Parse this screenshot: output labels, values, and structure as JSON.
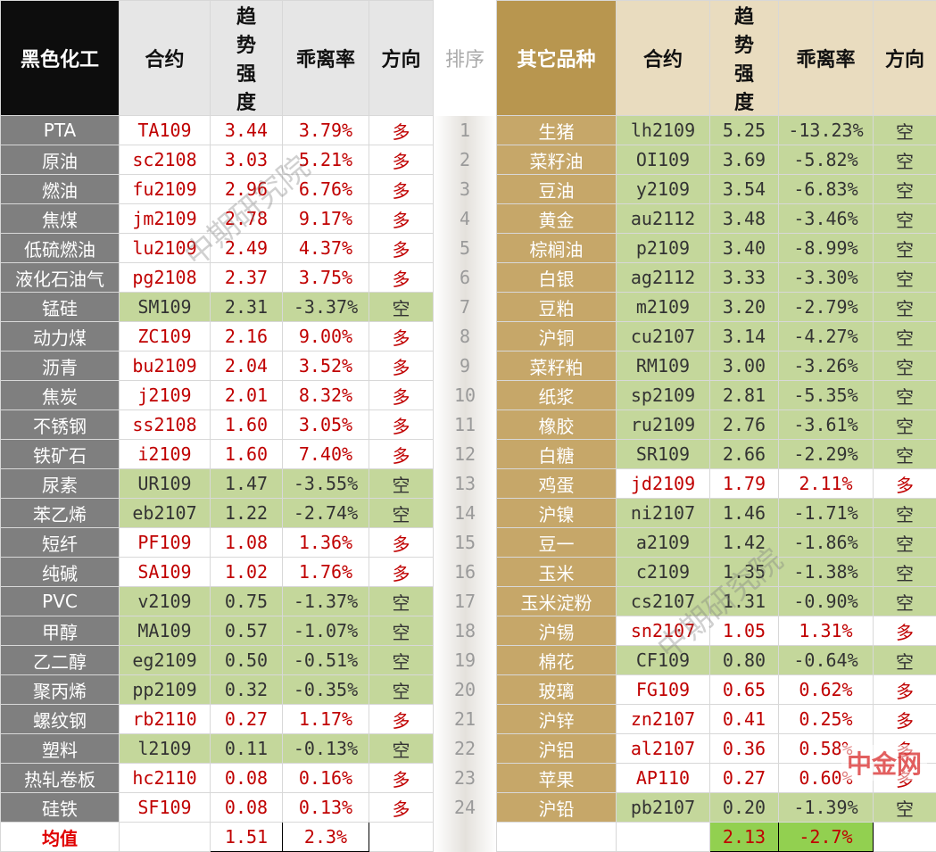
{
  "left": {
    "header": [
      "黑色化工",
      "合约",
      "趋势强度",
      "乖离率",
      "方向"
    ],
    "rows": [
      {
        "cells": [
          "PTA",
          "TA109",
          "3.44",
          "3.79%",
          "多"
        ],
        "fill": "#ffffff",
        "ink": "#c00000"
      },
      {
        "cells": [
          "原油",
          "sc2108",
          "3.03",
          "5.21%",
          "多"
        ],
        "fill": "#ffffff",
        "ink": "#c00000"
      },
      {
        "cells": [
          "燃油",
          "fu2109",
          "2.96",
          "6.76%",
          "多"
        ],
        "fill": "#ffffff",
        "ink": "#c00000"
      },
      {
        "cells": [
          "焦煤",
          "jm2109",
          "2.78",
          "9.17%",
          "多"
        ],
        "fill": "#ffffff",
        "ink": "#c00000"
      },
      {
        "cells": [
          "低硫燃油",
          "lu2109",
          "2.49",
          "4.37%",
          "多"
        ],
        "fill": "#ffffff",
        "ink": "#c00000"
      },
      {
        "cells": [
          "液化石油气",
          "pg2108",
          "2.37",
          "3.75%",
          "多"
        ],
        "fill": "#ffffff",
        "ink": "#c00000"
      },
      {
        "cells": [
          "锰硅",
          "SM109",
          "2.31",
          "-3.37%",
          "空"
        ],
        "fill": "#c4d79b",
        "ink": "#333333"
      },
      {
        "cells": [
          "动力煤",
          "ZC109",
          "2.16",
          "9.00%",
          "多"
        ],
        "fill": "#ffffff",
        "ink": "#c00000"
      },
      {
        "cells": [
          "沥青",
          "bu2109",
          "2.04",
          "3.52%",
          "多"
        ],
        "fill": "#ffffff",
        "ink": "#c00000"
      },
      {
        "cells": [
          "焦炭",
          "j2109",
          "2.01",
          "8.32%",
          "多"
        ],
        "fill": "#ffffff",
        "ink": "#c00000"
      },
      {
        "cells": [
          "不锈钢",
          "ss2108",
          "1.60",
          "3.05%",
          "多"
        ],
        "fill": "#ffffff",
        "ink": "#c00000"
      },
      {
        "cells": [
          "铁矿石",
          "i2109",
          "1.60",
          "7.40%",
          "多"
        ],
        "fill": "#ffffff",
        "ink": "#c00000"
      },
      {
        "cells": [
          "尿素",
          "UR109",
          "1.47",
          "-3.55%",
          "空"
        ],
        "fill": "#c4d79b",
        "ink": "#333333"
      },
      {
        "cells": [
          "苯乙烯",
          "eb2107",
          "1.22",
          "-2.74%",
          "空"
        ],
        "fill": "#c4d79b",
        "ink": "#333333"
      },
      {
        "cells": [
          "短纤",
          "PF109",
          "1.08",
          "1.36%",
          "多"
        ],
        "fill": "#ffffff",
        "ink": "#c00000"
      },
      {
        "cells": [
          "纯碱",
          "SA109",
          "1.02",
          "1.76%",
          "多"
        ],
        "fill": "#ffffff",
        "ink": "#c00000"
      },
      {
        "cells": [
          "PVC",
          "v2109",
          "0.75",
          "-1.37%",
          "空"
        ],
        "fill": "#c4d79b",
        "ink": "#333333"
      },
      {
        "cells": [
          "甲醇",
          "MA109",
          "0.57",
          "-1.07%",
          "空"
        ],
        "fill": "#c4d79b",
        "ink": "#333333"
      },
      {
        "cells": [
          "乙二醇",
          "eg2109",
          "0.50",
          "-0.51%",
          "空"
        ],
        "fill": "#c4d79b",
        "ink": "#333333"
      },
      {
        "cells": [
          "聚丙烯",
          "pp2109",
          "0.32",
          "-0.35%",
          "空"
        ],
        "fill": "#c4d79b",
        "ink": "#333333"
      },
      {
        "cells": [
          "螺纹钢",
          "rb2110",
          "0.27",
          "1.17%",
          "多"
        ],
        "fill": "#ffffff",
        "ink": "#c00000"
      },
      {
        "cells": [
          "塑料",
          "l2109",
          "0.11",
          "-0.13%",
          "空"
        ],
        "fill": "#c4d79b",
        "ink": "#333333"
      },
      {
        "cells": [
          "热轧卷板",
          "hc2110",
          "0.08",
          "0.16%",
          "多"
        ],
        "fill": "#ffffff",
        "ink": "#c00000"
      },
      {
        "cells": [
          "硅铁",
          "SF109",
          "0.08",
          "0.13%",
          "多"
        ],
        "fill": "#ffffff",
        "ink": "#c00000"
      }
    ],
    "footer": [
      "均值",
      "1.51",
      "2.3%"
    ]
  },
  "rank": {
    "header": "排序",
    "values": [
      "1",
      "2",
      "3",
      "4",
      "5",
      "6",
      "7",
      "8",
      "9",
      "10",
      "11",
      "12",
      "13",
      "14",
      "15",
      "16",
      "17",
      "18",
      "19",
      "20",
      "21",
      "22",
      "23",
      "24"
    ]
  },
  "right": {
    "header": [
      "其它品种",
      "合约",
      "趋势强度",
      "乖离率",
      "方向"
    ],
    "rows": [
      {
        "cells": [
          "生猪",
          "lh2109",
          "5.25",
          "-13.23%",
          "空"
        ],
        "fill": "#c4d79b",
        "ink": "#333333"
      },
      {
        "cells": [
          "菜籽油",
          "OI109",
          "3.69",
          "-5.82%",
          "空"
        ],
        "fill": "#c4d79b",
        "ink": "#333333"
      },
      {
        "cells": [
          "豆油",
          "y2109",
          "3.54",
          "-6.83%",
          "空"
        ],
        "fill": "#c4d79b",
        "ink": "#333333"
      },
      {
        "cells": [
          "黄金",
          "au2112",
          "3.48",
          "-3.46%",
          "空"
        ],
        "fill": "#c4d79b",
        "ink": "#333333"
      },
      {
        "cells": [
          "棕榈油",
          "p2109",
          "3.40",
          "-8.99%",
          "空"
        ],
        "fill": "#c4d79b",
        "ink": "#333333"
      },
      {
        "cells": [
          "白银",
          "ag2112",
          "3.33",
          "-3.30%",
          "空"
        ],
        "fill": "#c4d79b",
        "ink": "#333333"
      },
      {
        "cells": [
          "豆粕",
          "m2109",
          "3.20",
          "-2.79%",
          "空"
        ],
        "fill": "#c4d79b",
        "ink": "#333333"
      },
      {
        "cells": [
          "沪铜",
          "cu2107",
          "3.14",
          "-4.27%",
          "空"
        ],
        "fill": "#c4d79b",
        "ink": "#333333"
      },
      {
        "cells": [
          "菜籽粕",
          "RM109",
          "3.00",
          "-3.26%",
          "空"
        ],
        "fill": "#c4d79b",
        "ink": "#333333"
      },
      {
        "cells": [
          "纸浆",
          "sp2109",
          "2.81",
          "-5.35%",
          "空"
        ],
        "fill": "#c4d79b",
        "ink": "#333333"
      },
      {
        "cells": [
          "橡胶",
          "ru2109",
          "2.76",
          "-3.61%",
          "空"
        ],
        "fill": "#c4d79b",
        "ink": "#333333"
      },
      {
        "cells": [
          "白糖",
          "SR109",
          "2.66",
          "-2.29%",
          "空"
        ],
        "fill": "#c4d79b",
        "ink": "#333333"
      },
      {
        "cells": [
          "鸡蛋",
          "jd2109",
          "1.79",
          "2.11%",
          "多"
        ],
        "fill": "#ffffff",
        "ink": "#c00000"
      },
      {
        "cells": [
          "沪镍",
          "ni2107",
          "1.46",
          "-1.71%",
          "空"
        ],
        "fill": "#c4d79b",
        "ink": "#333333"
      },
      {
        "cells": [
          "豆一",
          "a2109",
          "1.42",
          "-1.86%",
          "空"
        ],
        "fill": "#c4d79b",
        "ink": "#333333"
      },
      {
        "cells": [
          "玉米",
          "c2109",
          "1.35",
          "-1.38%",
          "空"
        ],
        "fill": "#c4d79b",
        "ink": "#333333"
      },
      {
        "cells": [
          "玉米淀粉",
          "cs2107",
          "1.31",
          "-0.90%",
          "空"
        ],
        "fill": "#c4d79b",
        "ink": "#333333"
      },
      {
        "cells": [
          "沪锡",
          "sn2107",
          "1.05",
          "1.31%",
          "多"
        ],
        "fill": "#ffffff",
        "ink": "#c00000"
      },
      {
        "cells": [
          "棉花",
          "CF109",
          "0.80",
          "-0.64%",
          "空"
        ],
        "fill": "#c4d79b",
        "ink": "#333333"
      },
      {
        "cells": [
          "玻璃",
          "FG109",
          "0.65",
          "0.62%",
          "多"
        ],
        "fill": "#ffffff",
        "ink": "#c00000"
      },
      {
        "cells": [
          "沪锌",
          "zn2107",
          "0.41",
          "0.25%",
          "多"
        ],
        "fill": "#ffffff",
        "ink": "#c00000"
      },
      {
        "cells": [
          "沪铝",
          "al2107",
          "0.36",
          "0.58%",
          "多"
        ],
        "fill": "#ffffff",
        "ink": "#c00000"
      },
      {
        "cells": [
          "苹果",
          "AP110",
          "0.27",
          "0.60%",
          "多"
        ],
        "fill": "#ffffff",
        "ink": "#c00000"
      },
      {
        "cells": [
          "沪铅",
          "pb2107",
          "0.20",
          "-1.39%",
          "空"
        ],
        "fill": "#c4d79b",
        "ink": "#333333"
      }
    ],
    "footer": [
      "2.13",
      "-2.7%"
    ]
  },
  "watermarks": [
    "中期研究院",
    "中期研究院"
  ],
  "logo": "中金网"
}
